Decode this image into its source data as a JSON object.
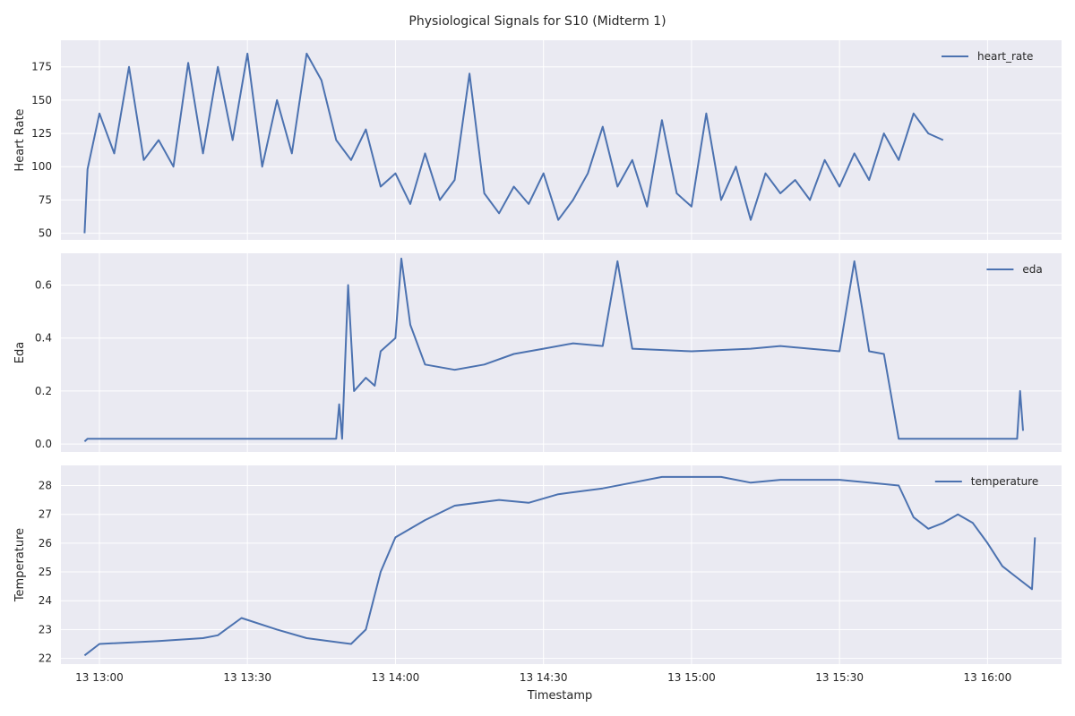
{
  "title": "Physiological Signals for S10 (Midterm 1)",
  "xlabel": "Timestamp",
  "x_ticks": [
    "13 13:00",
    "13 13:30",
    "13 14:00",
    "13 14:30",
    "13 15:00",
    "13 15:30",
    "13 16:00"
  ],
  "colors": {
    "line": "#4c72b0",
    "panel": "#eaeaf2",
    "grid": "#ffffff",
    "text": "#262626"
  },
  "chart_data": [
    {
      "type": "line",
      "series": [
        {
          "name": "heart_rate",
          "points": [
            [
              12.95,
              50
            ],
            [
              12.96,
              98
            ],
            [
              13.0,
              140
            ],
            [
              13.05,
              110
            ],
            [
              13.1,
              175
            ],
            [
              13.15,
              105
            ],
            [
              13.2,
              120
            ],
            [
              13.25,
              100
            ],
            [
              13.3,
              178
            ],
            [
              13.35,
              110
            ],
            [
              13.4,
              175
            ],
            [
              13.45,
              120
            ],
            [
              13.5,
              185
            ],
            [
              13.55,
              100
            ],
            [
              13.6,
              150
            ],
            [
              13.65,
              110
            ],
            [
              13.7,
              185
            ],
            [
              13.75,
              165
            ],
            [
              13.8,
              120
            ],
            [
              13.85,
              105
            ],
            [
              13.9,
              128
            ],
            [
              13.95,
              85
            ],
            [
              14.0,
              95
            ],
            [
              14.05,
              72
            ],
            [
              14.1,
              110
            ],
            [
              14.15,
              75
            ],
            [
              14.2,
              90
            ],
            [
              14.25,
              170
            ],
            [
              14.3,
              80
            ],
            [
              14.35,
              65
            ],
            [
              14.4,
              85
            ],
            [
              14.45,
              72
            ],
            [
              14.5,
              95
            ],
            [
              14.55,
              60
            ],
            [
              14.6,
              75
            ],
            [
              14.65,
              95
            ],
            [
              14.7,
              130
            ],
            [
              14.75,
              85
            ],
            [
              14.8,
              105
            ],
            [
              14.85,
              70
            ],
            [
              14.9,
              135
            ],
            [
              14.95,
              80
            ],
            [
              15.0,
              70
            ],
            [
              15.05,
              140
            ],
            [
              15.1,
              75
            ],
            [
              15.15,
              100
            ],
            [
              15.2,
              60
            ],
            [
              15.25,
              95
            ],
            [
              15.3,
              80
            ],
            [
              15.35,
              90
            ],
            [
              15.4,
              75
            ],
            [
              15.45,
              105
            ],
            [
              15.5,
              85
            ],
            [
              15.55,
              110
            ],
            [
              15.6,
              90
            ],
            [
              15.65,
              125
            ],
            [
              15.7,
              105
            ],
            [
              15.75,
              140
            ],
            [
              15.8,
              125
            ],
            [
              15.85,
              120
            ]
          ]
        }
      ],
      "ylabel": "Heart Rate",
      "ylim": [
        45,
        195
      ],
      "y_ticks": [
        "50",
        "75",
        "100",
        "125",
        "150",
        "175"
      ]
    },
    {
      "type": "line",
      "series": [
        {
          "name": "eda",
          "points": [
            [
              12.95,
              0.01
            ],
            [
              12.96,
              0.02
            ],
            [
              13.0,
              0.02
            ],
            [
              13.1,
              0.02
            ],
            [
              13.3,
              0.02
            ],
            [
              13.5,
              0.02
            ],
            [
              13.8,
              0.02
            ],
            [
              13.81,
              0.15
            ],
            [
              13.82,
              0.02
            ],
            [
              13.84,
              0.6
            ],
            [
              13.86,
              0.2
            ],
            [
              13.9,
              0.25
            ],
            [
              13.93,
              0.22
            ],
            [
              13.95,
              0.35
            ],
            [
              14.0,
              0.4
            ],
            [
              14.02,
              0.7
            ],
            [
              14.05,
              0.45
            ],
            [
              14.1,
              0.3
            ],
            [
              14.2,
              0.28
            ],
            [
              14.3,
              0.3
            ],
            [
              14.4,
              0.34
            ],
            [
              14.5,
              0.36
            ],
            [
              14.6,
              0.38
            ],
            [
              14.7,
              0.37
            ],
            [
              14.75,
              0.69
            ],
            [
              14.8,
              0.36
            ],
            [
              15.0,
              0.35
            ],
            [
              15.2,
              0.36
            ],
            [
              15.3,
              0.37
            ],
            [
              15.4,
              0.36
            ],
            [
              15.5,
              0.35
            ],
            [
              15.55,
              0.69
            ],
            [
              15.6,
              0.35
            ],
            [
              15.65,
              0.34
            ],
            [
              15.7,
              0.02
            ],
            [
              15.8,
              0.02
            ],
            [
              16.0,
              0.02
            ],
            [
              16.1,
              0.02
            ],
            [
              16.11,
              0.2
            ],
            [
              16.12,
              0.05
            ]
          ]
        }
      ],
      "ylabel": "Eda",
      "ylim": [
        -0.03,
        0.72
      ],
      "y_ticks": [
        "0.0",
        "0.2",
        "0.4",
        "0.6"
      ]
    },
    {
      "type": "line",
      "series": [
        {
          "name": "temperature",
          "points": [
            [
              12.95,
              22.1
            ],
            [
              13.0,
              22.5
            ],
            [
              13.2,
              22.6
            ],
            [
              13.35,
              22.7
            ],
            [
              13.4,
              22.8
            ],
            [
              13.48,
              23.4
            ],
            [
              13.6,
              23.0
            ],
            [
              13.7,
              22.7
            ],
            [
              13.85,
              22.5
            ],
            [
              13.9,
              23.0
            ],
            [
              13.95,
              25.0
            ],
            [
              14.0,
              26.2
            ],
            [
              14.1,
              26.8
            ],
            [
              14.2,
              27.3
            ],
            [
              14.35,
              27.5
            ],
            [
              14.45,
              27.4
            ],
            [
              14.55,
              27.7
            ],
            [
              14.7,
              27.9
            ],
            [
              14.8,
              28.1
            ],
            [
              14.9,
              28.3
            ],
            [
              15.0,
              28.3
            ],
            [
              15.1,
              28.3
            ],
            [
              15.2,
              28.1
            ],
            [
              15.3,
              28.2
            ],
            [
              15.4,
              28.2
            ],
            [
              15.5,
              28.2
            ],
            [
              15.6,
              28.1
            ],
            [
              15.7,
              28.0
            ],
            [
              15.75,
              26.9
            ],
            [
              15.8,
              26.5
            ],
            [
              15.85,
              26.7
            ],
            [
              15.9,
              27.0
            ],
            [
              15.95,
              26.7
            ],
            [
              16.0,
              26.0
            ],
            [
              16.05,
              25.2
            ],
            [
              16.1,
              24.8
            ],
            [
              16.15,
              24.4
            ],
            [
              16.16,
              26.2
            ]
          ]
        }
      ],
      "ylabel": "Temperature",
      "ylim": [
        21.8,
        28.7
      ],
      "y_ticks": [
        "22",
        "23",
        "24",
        "25",
        "26",
        "27",
        "28"
      ]
    }
  ]
}
